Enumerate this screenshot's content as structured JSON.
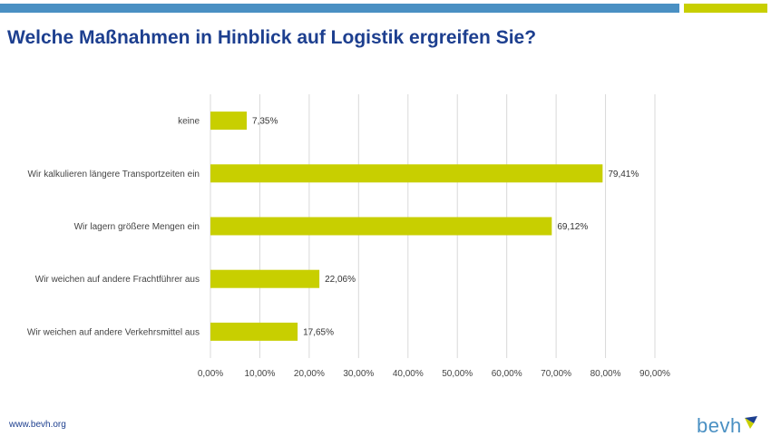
{
  "header": {
    "title": "Welche Maßnahmen in Hinblick auf Logistik ergreifen Sie?"
  },
  "footer": {
    "url": "www.bevh.org",
    "logo_text": "bevh"
  },
  "colors": {
    "accent_blue": "#4a90c3",
    "accent_green": "#c8cf00",
    "title_blue": "#1d3f8f",
    "bar": "#c8cf00",
    "grid": "#d9d9d9"
  },
  "chart_data": {
    "type": "bar",
    "orientation": "horizontal",
    "title": "",
    "xlabel": "",
    "ylabel": "",
    "categories": [
      "keine",
      "Wir kalkulieren längere Transportzeiten ein",
      "Wir lagern größere Mengen ein",
      "Wir weichen auf andere Frachtführer aus",
      "Wir weichen auf andere Verkehrsmittel aus"
    ],
    "values": [
      7.35,
      79.41,
      69.12,
      22.06,
      17.65
    ],
    "value_labels": [
      "7,35%",
      "79,41%",
      "69,12%",
      "22,06%",
      "17,65%"
    ],
    "xlim": [
      0,
      90
    ],
    "x_ticks": [
      "0,00%",
      "10,00%",
      "20,00%",
      "30,00%",
      "40,00%",
      "50,00%",
      "60,00%",
      "70,00%",
      "80,00%",
      "90,00%"
    ],
    "grid": true,
    "legend": false
  }
}
